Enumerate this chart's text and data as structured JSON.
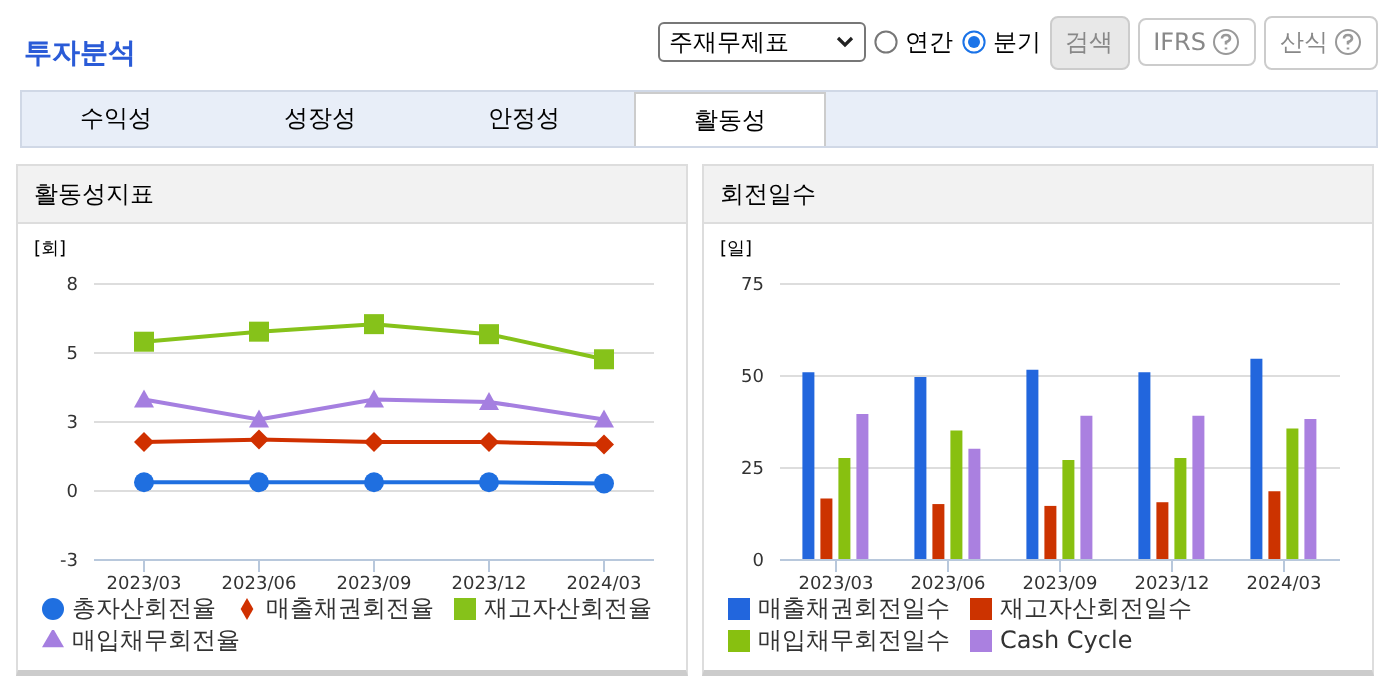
{
  "chart_data": [
    {
      "type": "other",
      "title": "투자분석",
      "annotations": [
        "주재무제표",
        "연간",
        "분기",
        "검색",
        "IFRS",
        "산식",
        "수익성",
        "성장성",
        "안정성",
        "활동성"
      ]
    },
    {
      "type": "line",
      "title": "활동성지표",
      "ylabel": "[회]",
      "categories": [
        "2023/03",
        "2023/06",
        "2023/09",
        "2023/12",
        "2024/03"
      ],
      "ylim": [
        -3,
        8
      ],
      "yticks": [
        -3,
        {
          "value": -0.25,
          "label": "0"
        },
        {
          "value": 2.5,
          "label": "3"
        },
        {
          "value": 5.25,
          "label": "5"
        },
        8
      ],
      "grid": "y",
      "legend": "bottom",
      "series": [
        {
          "name": "총자산회전율",
          "color": "#1f6fe0",
          "marker": "circle",
          "values": [
            0.1,
            0.1,
            0.1,
            0.1,
            0.05
          ]
        },
        {
          "name": "매출채권회전율",
          "color": "#d03000",
          "marker": "diamond",
          "values": [
            1.7,
            1.8,
            1.7,
            1.7,
            1.6
          ]
        },
        {
          "name": "재고자산회전율",
          "color": "#86c21a",
          "marker": "square",
          "values": [
            5.7,
            6.1,
            6.4,
            6.0,
            5.0
          ]
        },
        {
          "name": "매입채무회전율",
          "color": "#a57fe0",
          "marker": "triangle",
          "values": [
            3.4,
            2.6,
            3.4,
            3.3,
            2.6
          ]
        }
      ]
    },
    {
      "type": "bar",
      "title": "회전일수",
      "ylabel": "[일]",
      "categories": [
        "2023/03",
        "2023/06",
        "2023/09",
        "2023/12",
        "2024/03"
      ],
      "ylim": [
        0,
        75
      ],
      "yticks": [
        0,
        25,
        50,
        75
      ],
      "grid": "y",
      "legend": "bottom",
      "series": [
        {
          "name": "매출채권회전일수",
          "color": "#2266dd",
          "values": [
            51,
            49.7,
            51.7,
            51,
            54.7
          ]
        },
        {
          "name": "재고자산회전일수",
          "color": "#cc3300",
          "values": [
            16.7,
            15.2,
            14.7,
            15.7,
            18.7
          ]
        },
        {
          "name": "매입채무회전일수",
          "color": "#88c010",
          "values": [
            27.7,
            35.2,
            27.2,
            27.7,
            35.7
          ]
        },
        {
          "name": "Cash Cycle",
          "color": "#aa80e0",
          "values": [
            39.7,
            30.2,
            39.2,
            39.2,
            38.3
          ]
        }
      ]
    }
  ]
}
